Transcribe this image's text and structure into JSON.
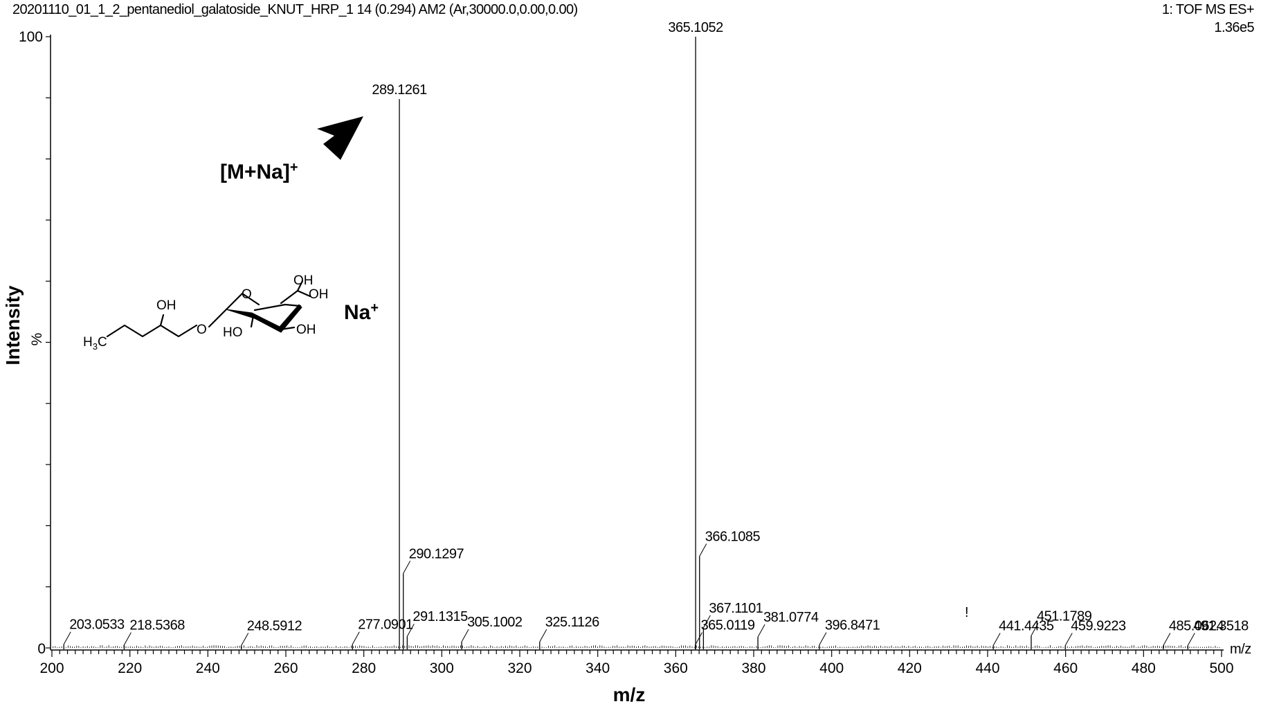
{
  "header": {
    "title": "20201110_01_1_2_pentanediol_galatoside_KNUT_HRP_1 14 (0.294) AM2 (Ar,30000.0,0.00,0.00)",
    "mode": "1: TOF MS ES+",
    "scale": "1.36e5"
  },
  "chart_data": {
    "type": "bar",
    "xlabel": "m/z",
    "xlabel_small": "m/z",
    "ylabel": "Intensity",
    "ylabel_unit": "%",
    "xlim": [
      200,
      500
    ],
    "ylim": [
      0,
      100
    ],
    "x_ticks": [
      "200",
      "220",
      "240",
      "260",
      "280",
      "300",
      "320",
      "340",
      "360",
      "380",
      "400",
      "420",
      "440",
      "460",
      "480",
      "500"
    ],
    "y_ticks": [
      "0",
      "100"
    ],
    "peaks": [
      {
        "mz": 203.0533,
        "intensity": 0.6,
        "label": "203.0533"
      },
      {
        "mz": 218.5368,
        "intensity": 0.5,
        "label": "218.5368"
      },
      {
        "mz": 248.5912,
        "intensity": 0.4,
        "label": "248.5912"
      },
      {
        "mz": 277.0901,
        "intensity": 0.6,
        "label": "277.0901"
      },
      {
        "mz": 289.1261,
        "intensity": 89.8,
        "label": "289.1261"
      },
      {
        "mz": 290.1297,
        "intensity": 12.2,
        "label": "290.1297"
      },
      {
        "mz": 291.1315,
        "intensity": 1.9,
        "label": "291.1315"
      },
      {
        "mz": 305.1002,
        "intensity": 1.0,
        "label": "305.1002"
      },
      {
        "mz": 325.1126,
        "intensity": 1.0,
        "label": "325.1126"
      },
      {
        "mz": 365.0119,
        "intensity": 0.5,
        "label": "365.0119"
      },
      {
        "mz": 365.1052,
        "intensity": 100,
        "label": "365.1052"
      },
      {
        "mz": 366.1085,
        "intensity": 15.0,
        "label": "366.1085"
      },
      {
        "mz": 367.1101,
        "intensity": 3.3,
        "label": "367.1101"
      },
      {
        "mz": 381.0774,
        "intensity": 1.8,
        "label": "381.0774"
      },
      {
        "mz": 396.8471,
        "intensity": 0.5,
        "label": "396.8471"
      },
      {
        "mz": 441.4435,
        "intensity": 0.4,
        "label": "441.4435"
      },
      {
        "mz": 451.1789,
        "intensity": 2.0,
        "label": "451.1789"
      },
      {
        "mz": 459.9223,
        "intensity": 0.4,
        "label": "459.9223"
      },
      {
        "mz": 485.0624,
        "intensity": 0.4,
        "label": "485.0624"
      },
      {
        "mz": 491.3518,
        "intensity": 0.4,
        "label": "491.3518"
      }
    ],
    "annotations": {
      "ion": "[M+Na]",
      "ion_charge": "+",
      "sodium": "Na",
      "sodium_charge": "+",
      "exclaim": "!"
    },
    "structure_labels": {
      "h3c_h": "H",
      "h3c_sub": "3",
      "h3c_c": "C",
      "oh_chain": "OH",
      "o_glyco": "O",
      "o_ring": "O",
      "oh_ch2": "OH",
      "oh_c4": "OH",
      "ho_c2": "HO",
      "oh_c3": "OH"
    }
  }
}
